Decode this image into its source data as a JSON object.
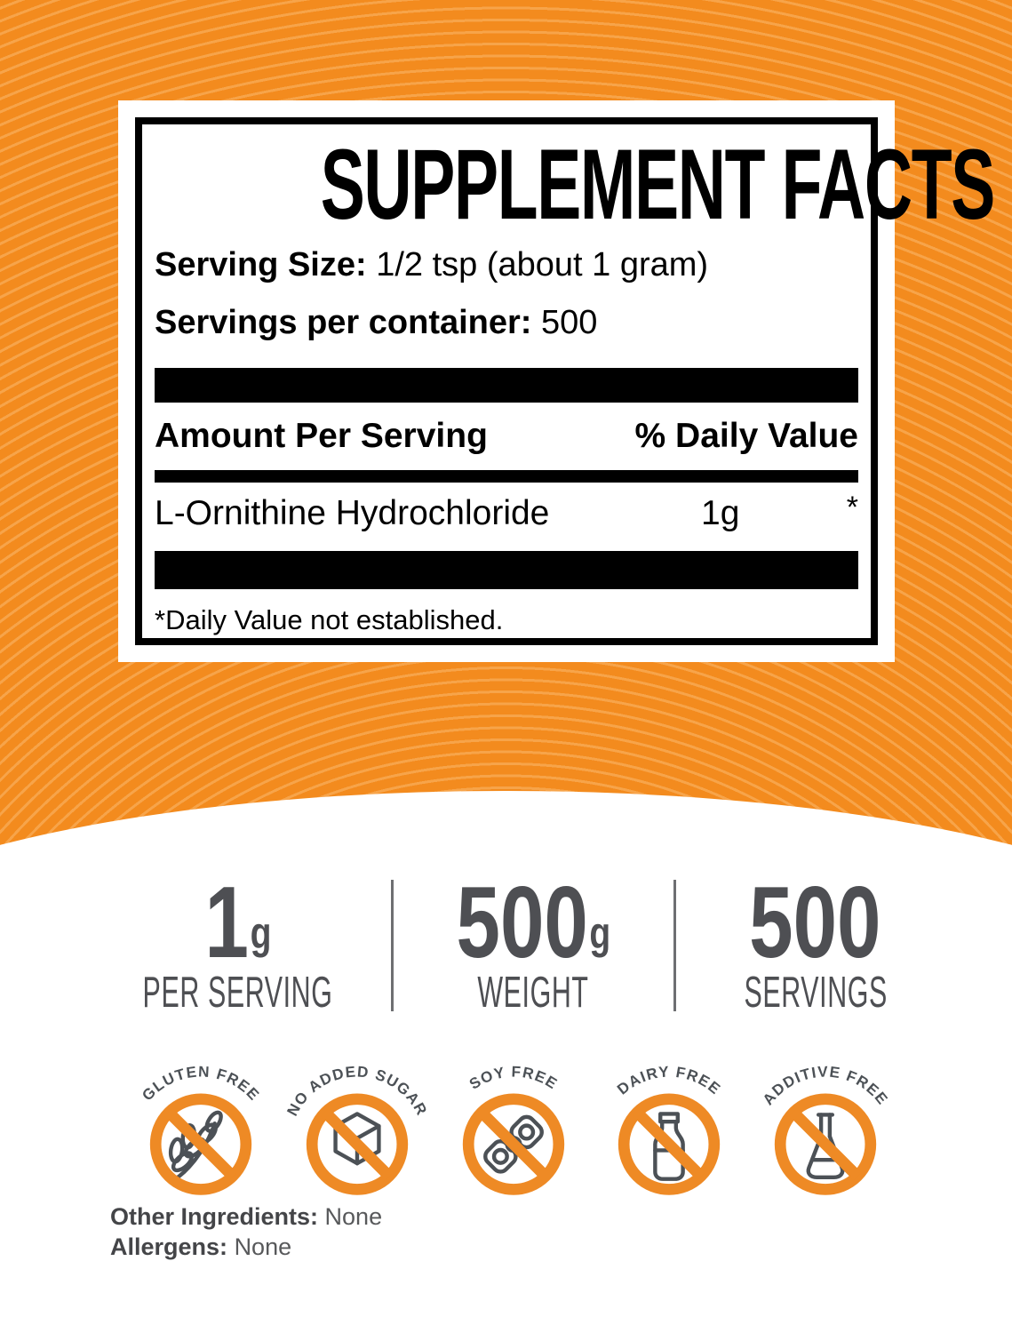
{
  "panel": {
    "title": "SUPPLEMENT FACTS",
    "serving_size_label": "Serving Size:",
    "serving_size_value": "1/2 tsp (about 1 gram)",
    "servings_label": "Servings per container:",
    "servings_value": "500",
    "amount_header": "Amount Per Serving",
    "dv_header": "% Daily Value",
    "rows": [
      {
        "name": "L-Ornithine Hydrochloride",
        "amount": "1g",
        "dv": "*"
      }
    ],
    "footnote": "*Daily Value not established."
  },
  "stats": [
    {
      "value": "1",
      "unit": "g",
      "label": "PER SERVING"
    },
    {
      "value": "500",
      "unit": "g",
      "label": "WEIGHT"
    },
    {
      "value": "500",
      "unit": "",
      "label": "SERVINGS"
    }
  ],
  "badges": [
    {
      "label": "GLUTEN FREE",
      "icon": "wheat-icon"
    },
    {
      "label": "NO ADDED SUGAR",
      "icon": "sugar-cube-icon"
    },
    {
      "label": "SOY FREE",
      "icon": "soy-icon"
    },
    {
      "label": "DAIRY FREE",
      "icon": "milk-bottle-icon"
    },
    {
      "label": "ADDITIVE FREE",
      "icon": "flask-icon"
    }
  ],
  "footer": {
    "other_ingredients_label": "Other Ingredients:",
    "other_ingredients_value": "None",
    "allergens_label": "Allergens:",
    "allergens_value": "None"
  },
  "colors": {
    "background_orange": "#F38B1E",
    "badge_ring_orange": "#EE8A25",
    "stats_gray": "#4E4F53",
    "badge_gray": "#4C5156",
    "panel_black": "#000000"
  }
}
